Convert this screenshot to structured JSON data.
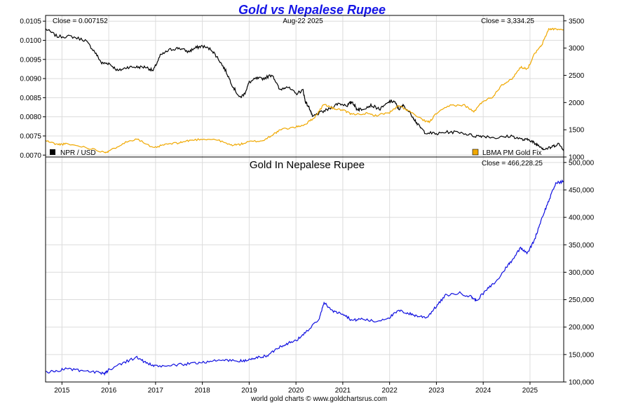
{
  "title": "Gold vs Nepalese Rupee",
  "footer": "world gold charts © www.goldchartsrus.com",
  "colors": {
    "title": "#1414e6",
    "npr": "#000000",
    "gold": "#f0a800",
    "gold_npr": "#1010e0"
  },
  "chart_data": [
    {
      "type": "line",
      "header": {
        "left": "Close = 0.007152",
        "center": "Aug-22  2025",
        "right": "Close = 3,334.25"
      },
      "x_range": [
        2014.65,
        2025.72
      ],
      "x_ticks": [
        "2015",
        "2016",
        "2017",
        "2018",
        "2019",
        "2020",
        "2021",
        "2022",
        "2023",
        "2024",
        "2025"
      ],
      "left_axis": {
        "ylim": [
          0.00695,
          0.01065
        ],
        "ticks": [
          "0.0105",
          "0.0100",
          "0.0095",
          "0.0090",
          "0.0085",
          "0.0080",
          "0.0075",
          "0.0070"
        ]
      },
      "right_axis": {
        "ylim": [
          1000,
          3600
        ],
        "ticks": [
          "3500",
          "3000",
          "2500",
          "2000",
          "1500",
          "1000"
        ]
      },
      "grid": true,
      "series": [
        {
          "name": "NPR / USD",
          "axis": "left",
          "legend": "bottom-left",
          "x": [
            2014.65,
            2014.9,
            2015.2,
            2015.5,
            2015.7,
            2015.85,
            2016.0,
            2016.2,
            2016.4,
            2016.6,
            2016.8,
            2016.95,
            2017.1,
            2017.3,
            2017.5,
            2017.7,
            2017.85,
            2018.0,
            2018.2,
            2018.35,
            2018.5,
            2018.65,
            2018.8,
            2018.9,
            2019.0,
            2019.15,
            2019.3,
            2019.5,
            2019.65,
            2019.8,
            2020.0,
            2020.15,
            2020.2,
            2020.3,
            2020.35,
            2020.5,
            2020.7,
            2020.9,
            2021.1,
            2021.2,
            2021.3,
            2021.4,
            2021.6,
            2021.8,
            2022.0,
            2022.1,
            2022.2,
            2022.3,
            2022.5,
            2022.6,
            2022.75,
            2023.0,
            2023.2,
            2023.5,
            2023.8,
            2024.0,
            2024.3,
            2024.6,
            2024.85,
            2025.0,
            2025.1,
            2025.2,
            2025.3,
            2025.45,
            2025.6,
            2025.72
          ],
          "y": [
            0.0103,
            0.0101,
            0.0101,
            0.01,
            0.0097,
            0.0094,
            0.0094,
            0.0092,
            0.0093,
            0.0093,
            0.0093,
            0.0092,
            0.0096,
            0.00975,
            0.0098,
            0.0097,
            0.0098,
            0.00985,
            0.00975,
            0.0095,
            0.0092,
            0.0088,
            0.0085,
            0.0086,
            0.0089,
            0.009,
            0.009,
            0.0091,
            0.0087,
            0.0088,
            0.0086,
            0.0087,
            0.0084,
            0.0082,
            0.008,
            0.0081,
            0.0082,
            0.00835,
            0.0083,
            0.0084,
            0.0082,
            0.0082,
            0.0083,
            0.0082,
            0.0084,
            0.0084,
            0.0082,
            0.0083,
            0.008,
            0.0078,
            0.0076,
            0.00755,
            0.0076,
            0.0076,
            0.0075,
            0.0075,
            0.00745,
            0.0075,
            0.0074,
            0.0074,
            0.0073,
            0.00725,
            0.00715,
            0.0072,
            0.0073,
            0.007152
          ]
        },
        {
          "name": "LBMA PM Gold Fix",
          "axis": "right",
          "legend": "bottom-right",
          "x": [
            2014.65,
            2014.9,
            2015.1,
            2015.5,
            2015.9,
            2016.0,
            2016.3,
            2016.6,
            2016.95,
            2017.2,
            2017.5,
            2017.7,
            2018.0,
            2018.3,
            2018.6,
            2018.8,
            2019.0,
            2019.3,
            2019.5,
            2019.7,
            2020.0,
            2020.2,
            2020.4,
            2020.6,
            2020.8,
            2021.0,
            2021.2,
            2021.5,
            2021.7,
            2022.0,
            2022.2,
            2022.4,
            2022.7,
            2022.85,
            2023.0,
            2023.3,
            2023.6,
            2023.8,
            2024.0,
            2024.2,
            2024.4,
            2024.6,
            2024.8,
            2024.95,
            2025.1,
            2025.25,
            2025.4,
            2025.55,
            2025.72
          ],
          "y": [
            1300,
            1230,
            1240,
            1180,
            1090,
            1100,
            1250,
            1340,
            1160,
            1230,
            1260,
            1300,
            1330,
            1320,
            1220,
            1230,
            1280,
            1300,
            1410,
            1510,
            1550,
            1600,
            1730,
            1970,
            1890,
            1860,
            1780,
            1800,
            1760,
            1820,
            1940,
            1850,
            1680,
            1640,
            1800,
            1950,
            1950,
            1830,
            2030,
            2100,
            2330,
            2420,
            2650,
            2620,
            2900,
            3050,
            3350,
            3350,
            3334.25
          ]
        }
      ]
    },
    {
      "type": "line",
      "title": "Gold In Nepalese Rupee",
      "header": {
        "right": "Close = 466,228.25"
      },
      "x_range": [
        2014.65,
        2025.72
      ],
      "right_axis": {
        "ylim": [
          100000,
          510000
        ],
        "ticks": [
          "500,000",
          "450,000",
          "400,000",
          "350,000",
          "300,000",
          "250,000",
          "200,000",
          "150,000",
          "100,000"
        ]
      },
      "grid": true,
      "series": [
        {
          "name": "Gold In Nepalese Rupee",
          "axis": "right",
          "x": [
            2014.65,
            2014.9,
            2015.1,
            2015.4,
            2015.7,
            2015.9,
            2016.0,
            2016.3,
            2016.6,
            2016.8,
            2017.0,
            2017.3,
            2017.6,
            2017.9,
            2018.2,
            2018.5,
            2018.8,
            2019.0,
            2019.2,
            2019.4,
            2019.6,
            2019.8,
            2020.0,
            2020.2,
            2020.5,
            2020.6,
            2020.8,
            2021.0,
            2021.2,
            2021.4,
            2021.7,
            2022.0,
            2022.2,
            2022.4,
            2022.6,
            2022.8,
            2023.0,
            2023.2,
            2023.5,
            2023.75,
            2023.85,
            2024.1,
            2024.3,
            2024.5,
            2024.6,
            2024.8,
            2024.95,
            2025.1,
            2025.25,
            2025.4,
            2025.55,
            2025.72
          ],
          "y": [
            118000,
            120000,
            125000,
            120000,
            118000,
            115000,
            122000,
            135000,
            145000,
            135000,
            128000,
            130000,
            132000,
            135000,
            138000,
            140000,
            138000,
            140000,
            145000,
            148000,
            162000,
            170000,
            175000,
            190000,
            215000,
            245000,
            228000,
            225000,
            212000,
            215000,
            210000,
            218000,
            230000,
            225000,
            220000,
            218000,
            238000,
            258000,
            262000,
            255000,
            248000,
            270000,
            285000,
            310000,
            320000,
            345000,
            335000,
            360000,
            398000,
            430000,
            462000,
            466228.25
          ]
        }
      ]
    }
  ]
}
